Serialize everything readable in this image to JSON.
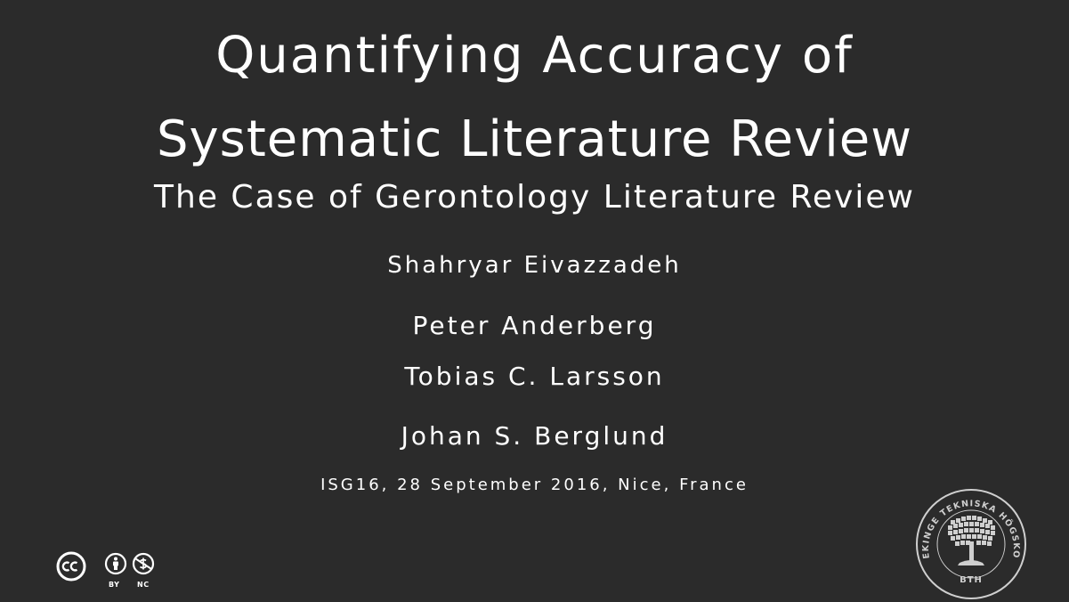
{
  "slide": {
    "title_line1": "Quantifying Accuracy of",
    "title_line2": "Systematic Literature Review",
    "subtitle": "The Case of Gerontology Literature Review",
    "authors": [
      "Shahryar Eivazzadeh",
      "Peter Anderberg",
      "Tobias C. Larsson",
      "Johan S. Berglund"
    ],
    "conference": "ISG16, 28 September 2016, Nice, France"
  },
  "license": {
    "icons": [
      "cc-icon",
      "attribution-icon",
      "noncommercial-icon"
    ],
    "by_label": "BY",
    "nc_label": "NC"
  },
  "seal": {
    "text": "BLEKINGE TEKNISKA HÖGSKOLA",
    "abbrev": "BTH"
  },
  "colors": {
    "background": "#2b2b2b",
    "text": "#ffffff",
    "seal": "#cfcfcf"
  }
}
